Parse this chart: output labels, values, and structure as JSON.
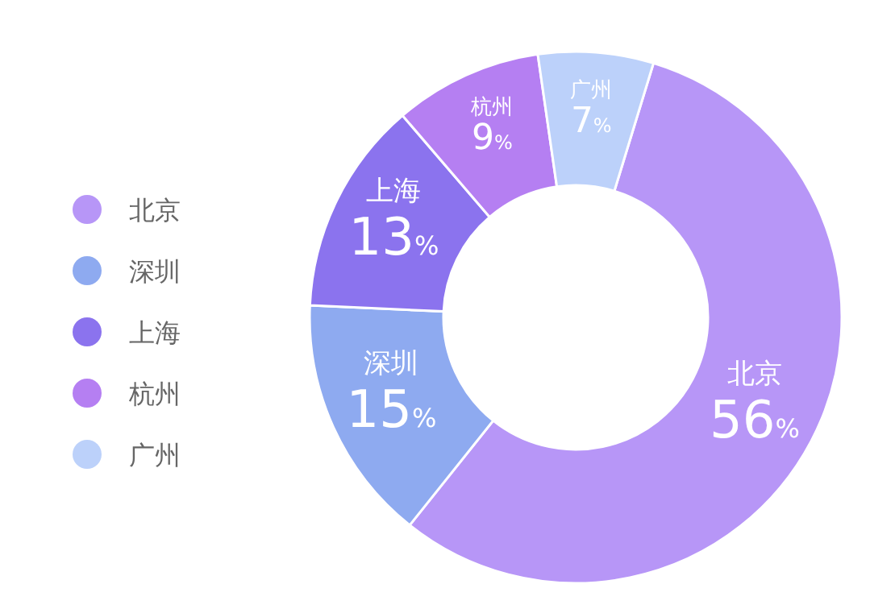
{
  "chart_data": {
    "type": "donut",
    "categories": [
      "北京",
      "深圳",
      "上海",
      "杭州",
      "广州"
    ],
    "values": [
      56,
      15,
      13,
      9,
      7
    ],
    "colors": [
      "#b796f7",
      "#8eaaf0",
      "#8b73ee",
      "#b57ff2",
      "#bcd1fa"
    ],
    "value_labels": [
      "56%",
      "15%",
      "13%",
      "9%",
      "7%"
    ],
    "legend": "left"
  }
}
